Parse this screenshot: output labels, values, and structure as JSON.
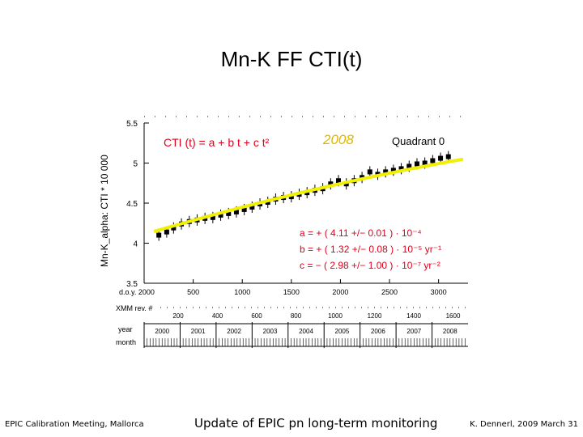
{
  "slide": {
    "title": "Mn-K   FF  CTI(t)",
    "footer_left": "EPIC Calibration Meeting, Mallorca",
    "footer_center": "Update of EPIC pn long-term monitoring",
    "footer_right": "K. Dennerl, 2009 March 31"
  },
  "colors": {
    "fit_line": "#f0f000",
    "formula": "#e0001b",
    "year_highlight": "#e0b800",
    "data": "#000000"
  },
  "chart_data": {
    "type": "scatter",
    "ylabel": "Mn-K_alpha: CTI * 10 000",
    "ylim": [
      3.5,
      5.5
    ],
    "xlim": [
      0,
      3300
    ],
    "y_ticks": [
      "5.5",
      "5",
      "4.5",
      "4",
      "3.5"
    ],
    "x_axis_label": "d.o.y. 2000",
    "x_ticks": [
      "500",
      "1000",
      "1500",
      "2000",
      "2500",
      "3000"
    ],
    "rev_axis_label": "XMM rev. #",
    "rev_ticks": [
      "200",
      "400",
      "600",
      "800",
      "1000",
      "1200",
      "1400",
      "1600"
    ],
    "year_axis_label": "year",
    "years": [
      "2000",
      "2001",
      "2002",
      "2003",
      "2004",
      "2005",
      "2006",
      "2007",
      "2008"
    ],
    "month_axis_label": "month",
    "annotations": {
      "formula": "CTI (t)  =  a + b t + c t²",
      "year_label": "2008",
      "quadrant": "Quadrant 0",
      "param_a": "a  =  +  ( 4.11 +/−  0.01 )  ·  10⁻⁴",
      "param_b": "b  =  +  ( 1.32 +/− 0.08 )  ·  10⁻⁵  yr⁻¹",
      "param_c": "c  =  −  ( 2.98 +/− 1.00 )  ·  10⁻⁷  yr⁻²"
    },
    "fit": {
      "a": 4.11,
      "b_per_yr": 0.132,
      "c_per_yr2": -0.00298,
      "t0_day": 0
    },
    "series": [
      {
        "x": [
          150,
          230,
          300,
          380,
          460,
          540,
          620,
          700,
          780,
          860,
          940,
          1020,
          1100,
          1180,
          1260,
          1340,
          1420,
          1500,
          1580,
          1660,
          1740,
          1820,
          1900,
          1980,
          2060,
          2140,
          2220,
          2300,
          2380,
          2460,
          2540,
          2620,
          2700,
          2780,
          2860,
          2940,
          3020,
          3100
        ],
        "y": [
          4.1,
          4.14,
          4.19,
          4.24,
          4.27,
          4.29,
          4.31,
          4.32,
          4.35,
          4.37,
          4.39,
          4.42,
          4.45,
          4.49,
          4.51,
          4.55,
          4.57,
          4.58,
          4.61,
          4.63,
          4.66,
          4.68,
          4.74,
          4.78,
          4.74,
          4.78,
          4.82,
          4.89,
          4.86,
          4.89,
          4.91,
          4.93,
          4.96,
          4.99,
          5.0,
          5.03,
          5.06,
          5.08
        ]
      }
    ]
  }
}
